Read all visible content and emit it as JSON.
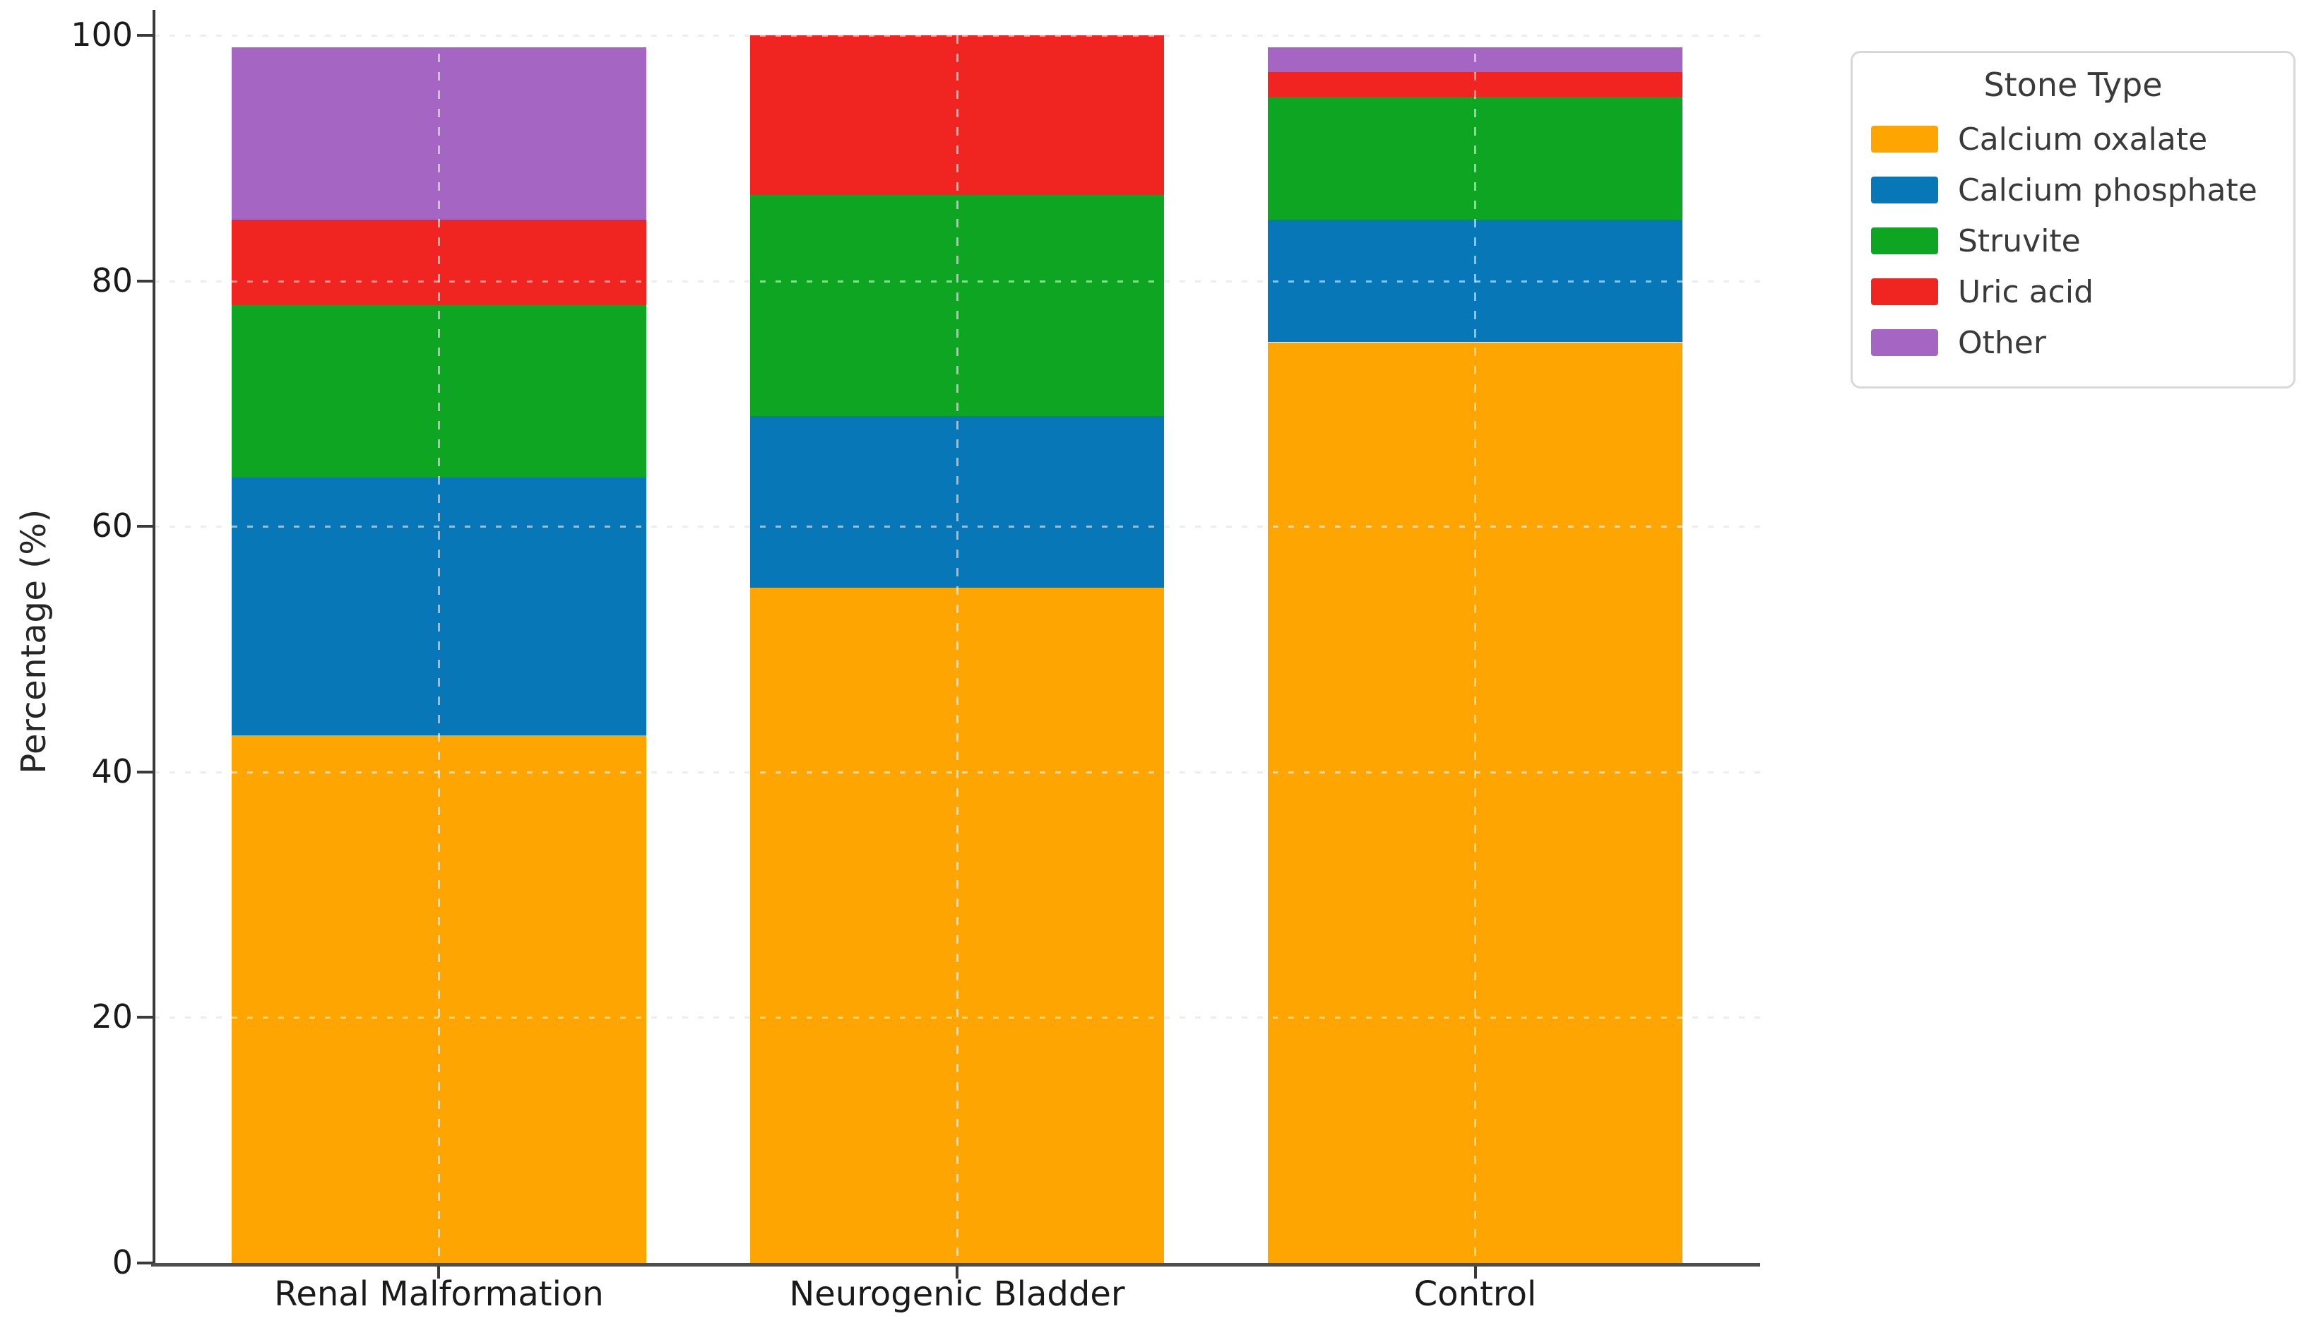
{
  "chart_data": {
    "type": "bar",
    "stacked": true,
    "orientation": "vertical",
    "title": "",
    "xlabel": "",
    "ylabel": "Percentage (%)",
    "ylim": [
      0,
      102
    ],
    "yticks": [
      0,
      20,
      40,
      60,
      80,
      100
    ],
    "grid": true,
    "grid_style": "dashed",
    "categories": [
      "Renal Malformation",
      "Neurogenic Bladder",
      "Control"
    ],
    "legend_title": "Stone Type",
    "legend_position": "outside upper right",
    "series": [
      {
        "name": "Calcium oxalate",
        "color": "#FFA502",
        "values": [
          43,
          55,
          75
        ]
      },
      {
        "name": "Calcium phosphate",
        "color": "#0877B8",
        "values": [
          21,
          14,
          10
        ]
      },
      {
        "name": "Struvite",
        "color": "#0DA521",
        "values": [
          14,
          18,
          10
        ]
      },
      {
        "name": "Uric acid",
        "color": "#F02420",
        "values": [
          7,
          13,
          2
        ]
      },
      {
        "name": "Other",
        "color": "#A466C2",
        "values": [
          14,
          0,
          2
        ]
      }
    ],
    "bar_totals": [
      99,
      100,
      99
    ],
    "colors": {
      "spine": "#3a3a3a",
      "grid": "#d7d7d7",
      "tick_label": "#1a1a1a",
      "legend_text": "#3a3a3a",
      "background": "#ffffff"
    }
  }
}
